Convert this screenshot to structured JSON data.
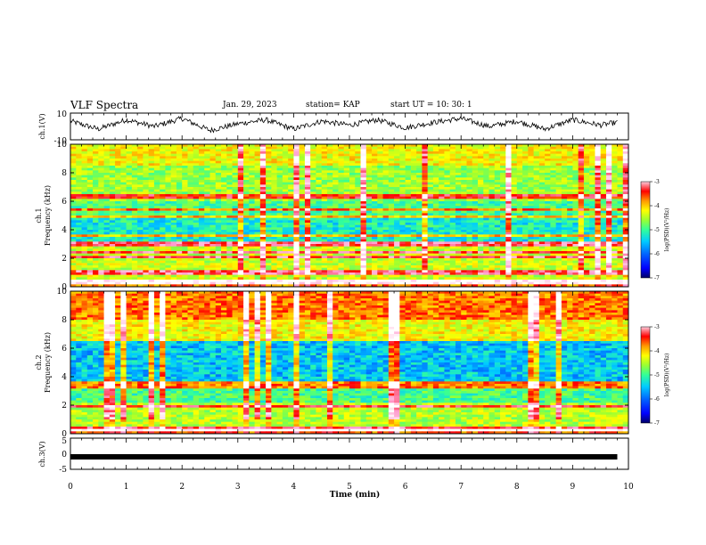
{
  "header": {
    "title": "VLF Spectra",
    "date": "Jan. 29, 2023",
    "station": "station= KAP",
    "start": "start  UT =   10: 30: 1"
  },
  "colors": {
    "colormap": [
      "#000066",
      "#0000ff",
      "#0066ff",
      "#00ccff",
      "#33ff99",
      "#99ff33",
      "#ffff00",
      "#ff9900",
      "#ff0000",
      "#ff99cc",
      "#ffffff"
    ],
    "trace": "#000000"
  },
  "chart_data": [
    {
      "type": "line",
      "name": "ch1-waveform",
      "ylabel": "ch.1(V)",
      "ylim": [
        -10,
        10
      ],
      "yticks": [
        "10",
        "-10"
      ],
      "xlim": [
        0,
        10
      ],
      "description_of_values": "noisy oscillation around ~2 V, amplitude ~4-6 V",
      "x": [
        0,
        0.5,
        1,
        1.5,
        2,
        2.5,
        3,
        3.5,
        4,
        4.5,
        5,
        5.5,
        6,
        6.5,
        7,
        7.5,
        8,
        8.5,
        9,
        9.5,
        9.8
      ],
      "y": [
        4,
        -2,
        5,
        0,
        6,
        -3,
        2,
        5,
        -2,
        4,
        1,
        5,
        -1,
        3,
        6,
        0,
        4,
        -2,
        5,
        1,
        3
      ]
    },
    {
      "type": "heatmap",
      "name": "ch1-spectrogram",
      "ylabel_line1": "ch.1",
      "ylabel_line2": "Frequency (kHz)",
      "yticks": [
        "0",
        "2",
        "4",
        "6",
        "8",
        "10"
      ],
      "ylim": [
        0,
        10
      ],
      "xlim": [
        0,
        10
      ],
      "colorbar": {
        "label": "log(PSD)(V²/Hz)",
        "ticks": [
          "-3",
          "-4",
          "-5",
          "-6",
          "-7"
        ],
        "range": [
          -7,
          -3
        ]
      },
      "bands_khz": [
        0.3,
        1.0,
        2.1,
        2.4,
        3.0,
        3.6,
        4.9,
        5.4,
        6.3
      ],
      "time_columns_min": 100,
      "freq_rows": 60
    },
    {
      "type": "heatmap",
      "name": "ch2-spectrogram",
      "ylabel_line1": "ch.2",
      "ylabel_line2": "Frequency (kHz)",
      "yticks": [
        "0",
        "2",
        "4",
        "6",
        "8",
        "10"
      ],
      "ylim": [
        0,
        10
      ],
      "xlim": [
        0,
        10
      ],
      "colorbar": {
        "label": "log(PSD)(V²/Hz)",
        "ticks": [
          "-3",
          "-4",
          "-5",
          "-6",
          "-7"
        ],
        "range": [
          -7,
          -3
        ]
      },
      "bands_khz": [
        0.3,
        1.9,
        3.3,
        3.6
      ],
      "time_columns_min": 100,
      "freq_rows": 60
    },
    {
      "type": "line",
      "name": "ch3-waveform",
      "ylabel": "ch.3(V)",
      "ylim": [
        -5,
        5
      ],
      "yticks": [
        "5",
        "0",
        "-5"
      ],
      "xlim": [
        0,
        10
      ],
      "x": [
        0,
        9.8
      ],
      "y": [
        -1,
        -1
      ]
    }
  ],
  "xaxis": {
    "label": "Time (min)",
    "ticks": [
      "0",
      "1",
      "2",
      "3",
      "4",
      "5",
      "6",
      "7",
      "8",
      "9",
      "10"
    ]
  }
}
